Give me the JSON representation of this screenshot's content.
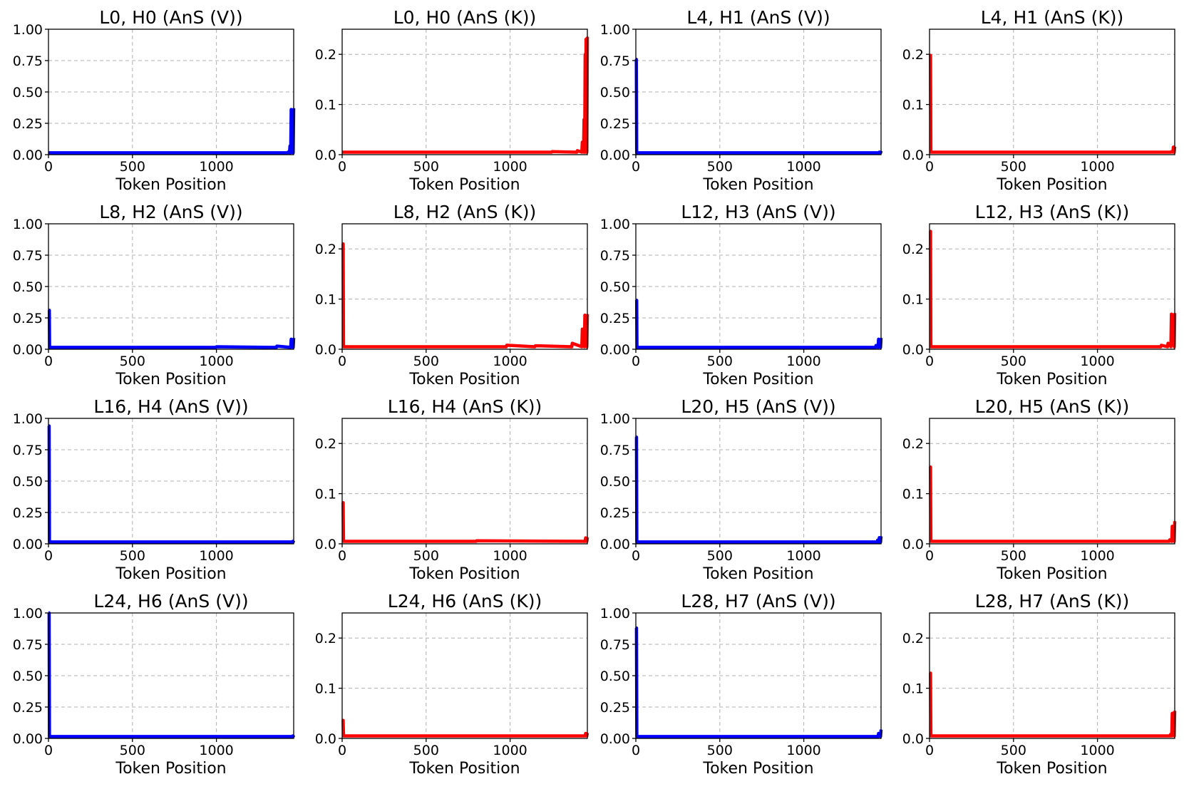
{
  "figure": {
    "xlabel": "Token Position",
    "colors": {
      "V": "#0000ff",
      "K": "#ff0000"
    }
  },
  "chart_data": [
    {
      "type": "line",
      "title": "L0, H0 (AnS (V))",
      "kind": "V",
      "xlabel": "Token Position",
      "xlim": [
        0,
        1460
      ],
      "ylim": [
        0,
        1
      ],
      "xticks": [
        0,
        500,
        1000
      ],
      "yticks": [
        "0.00",
        "0.25",
        "0.50",
        "0.75",
        "1.00"
      ],
      "baseline": 0.015,
      "spikes": [
        [
          1425,
          0.02
        ],
        [
          1438,
          0.07
        ],
        [
          1445,
          0.36
        ],
        [
          1460,
          0.37
        ]
      ]
    },
    {
      "type": "line",
      "title": "L0, H0 (AnS (K))",
      "kind": "K",
      "xlabel": "Token Position",
      "xlim": [
        0,
        1460
      ],
      "ylim": [
        0,
        0.25
      ],
      "xticks": [
        0,
        500,
        1000
      ],
      "yticks": [
        "0.0",
        "0.1",
        "0.2"
      ],
      "baseline": 0.005,
      "spikes": [
        [
          1250,
          0.006
        ],
        [
          1400,
          0.008
        ],
        [
          1430,
          0.025
        ],
        [
          1440,
          0.07
        ],
        [
          1447,
          0.2
        ],
        [
          1452,
          0.23
        ],
        [
          1460,
          0.235
        ]
      ]
    },
    {
      "type": "line",
      "title": "L4, H1 (AnS (V))",
      "kind": "V",
      "xlabel": "Token Position",
      "xlim": [
        0,
        1460
      ],
      "ylim": [
        0,
        1
      ],
      "xticks": [
        0,
        500,
        1000
      ],
      "yticks": [
        "0.00",
        "0.25",
        "0.50",
        "0.75",
        "1.00"
      ],
      "baseline": 0.015,
      "spikes": [
        [
          0,
          0.76
        ],
        [
          3,
          0.76
        ],
        [
          1450,
          0.02
        ],
        [
          1460,
          0.03
        ]
      ]
    },
    {
      "type": "line",
      "title": "L4, H1 (AnS (K))",
      "kind": "K",
      "xlabel": "Token Position",
      "xlim": [
        0,
        1460
      ],
      "ylim": [
        0,
        0.25
      ],
      "xticks": [
        0,
        500,
        1000
      ],
      "yticks": [
        "0.0",
        "0.1",
        "0.2"
      ],
      "baseline": 0.005,
      "spikes": [
        [
          0,
          0.198
        ],
        [
          6,
          0.198
        ],
        [
          1440,
          0.006
        ],
        [
          1452,
          0.015
        ],
        [
          1460,
          0.016
        ]
      ]
    },
    {
      "type": "line",
      "title": "L8, H2 (AnS (V))",
      "kind": "V",
      "xlabel": "Token Position",
      "xlim": [
        0,
        1460
      ],
      "ylim": [
        0,
        1
      ],
      "xticks": [
        0,
        500,
        1000
      ],
      "yticks": [
        "0.00",
        "0.25",
        "0.50",
        "0.75",
        "1.00"
      ],
      "baseline": 0.015,
      "spikes": [
        [
          0,
          0.31
        ],
        [
          5,
          0.31
        ],
        [
          1000,
          0.02
        ],
        [
          1360,
          0.025
        ],
        [
          1445,
          0.08
        ],
        [
          1460,
          0.09
        ]
      ]
    },
    {
      "type": "line",
      "title": "L8, H2 (AnS (K))",
      "kind": "K",
      "xlabel": "Token Position",
      "xlim": [
        0,
        1460
      ],
      "ylim": [
        0,
        0.25
      ],
      "xticks": [
        0,
        500,
        1000
      ],
      "yticks": [
        "0.0",
        "0.1",
        "0.2"
      ],
      "baseline": 0.005,
      "spikes": [
        [
          0,
          0.21
        ],
        [
          6,
          0.21
        ],
        [
          980,
          0.008
        ],
        [
          1150,
          0.007
        ],
        [
          1370,
          0.012
        ],
        [
          1430,
          0.04
        ],
        [
          1445,
          0.068
        ],
        [
          1460,
          0.07
        ]
      ]
    },
    {
      "type": "line",
      "title": "L12, H3 (AnS (V))",
      "kind": "V",
      "xlabel": "Token Position",
      "xlim": [
        0,
        1460
      ],
      "ylim": [
        0,
        1
      ],
      "xticks": [
        0,
        500,
        1000
      ],
      "yticks": [
        "0.00",
        "0.25",
        "0.50",
        "0.75",
        "1.00"
      ],
      "baseline": 0.015,
      "spikes": [
        [
          0,
          0.39
        ],
        [
          5,
          0.39
        ],
        [
          1430,
          0.03
        ],
        [
          1445,
          0.08
        ],
        [
          1460,
          0.09
        ]
      ]
    },
    {
      "type": "line",
      "title": "L12, H3 (AnS (K))",
      "kind": "K",
      "xlabel": "Token Position",
      "xlim": [
        0,
        1460
      ],
      "ylim": [
        0,
        0.25
      ],
      "xticks": [
        0,
        500,
        1000
      ],
      "yticks": [
        "0.0",
        "0.1",
        "0.2"
      ],
      "baseline": 0.005,
      "spikes": [
        [
          0,
          0.235
        ],
        [
          6,
          0.235
        ],
        [
          1380,
          0.008
        ],
        [
          1420,
          0.012
        ],
        [
          1440,
          0.07
        ],
        [
          1460,
          0.072
        ]
      ]
    },
    {
      "type": "line",
      "title": "L16, H4 (AnS (V))",
      "kind": "V",
      "xlabel": "Token Position",
      "xlim": [
        0,
        1460
      ],
      "ylim": [
        0,
        1
      ],
      "xticks": [
        0,
        500,
        1000
      ],
      "yticks": [
        "0.00",
        "0.25",
        "0.50",
        "0.75",
        "1.00"
      ],
      "baseline": 0.015,
      "spikes": [
        [
          0,
          0.94
        ],
        [
          4,
          0.94
        ],
        [
          1455,
          0.02
        ],
        [
          1460,
          0.025
        ]
      ]
    },
    {
      "type": "line",
      "title": "L16, H4 (AnS (K))",
      "kind": "K",
      "xlabel": "Token Position",
      "xlim": [
        0,
        1460
      ],
      "ylim": [
        0,
        0.25
      ],
      "xticks": [
        0,
        500,
        1000
      ],
      "yticks": [
        "0.0",
        "0.1",
        "0.2"
      ],
      "baseline": 0.005,
      "spikes": [
        [
          0,
          0.082
        ],
        [
          6,
          0.082
        ],
        [
          800,
          0.006
        ],
        [
          1450,
          0.012
        ],
        [
          1460,
          0.013
        ]
      ]
    },
    {
      "type": "line",
      "title": "L20, H5 (AnS (V))",
      "kind": "V",
      "xlabel": "Token Position",
      "xlim": [
        0,
        1460
      ],
      "ylim": [
        0,
        1
      ],
      "xticks": [
        0,
        500,
        1000
      ],
      "yticks": [
        "0.00",
        "0.25",
        "0.50",
        "0.75",
        "1.00"
      ],
      "baseline": 0.015,
      "spikes": [
        [
          0,
          0.85
        ],
        [
          4,
          0.85
        ],
        [
          1440,
          0.03
        ],
        [
          1450,
          0.05
        ],
        [
          1460,
          0.06
        ]
      ]
    },
    {
      "type": "line",
      "title": "L20, H5 (AnS (K))",
      "kind": "K",
      "xlabel": "Token Position",
      "xlim": [
        0,
        1460
      ],
      "ylim": [
        0,
        0.25
      ],
      "xticks": [
        0,
        500,
        1000
      ],
      "yticks": [
        "0.0",
        "0.1",
        "0.2"
      ],
      "baseline": 0.005,
      "spikes": [
        [
          0,
          0.153
        ],
        [
          6,
          0.153
        ],
        [
          1430,
          0.008
        ],
        [
          1445,
          0.035
        ],
        [
          1460,
          0.045
        ]
      ]
    },
    {
      "type": "line",
      "title": "L24, H6 (AnS (V))",
      "kind": "V",
      "xlabel": "Token Position",
      "xlim": [
        0,
        1460
      ],
      "ylim": [
        0,
        1
      ],
      "xticks": [
        0,
        500,
        1000
      ],
      "yticks": [
        "0.00",
        "0.25",
        "0.50",
        "0.75",
        "1.00"
      ],
      "baseline": 0.015,
      "spikes": [
        [
          0,
          1.0
        ],
        [
          4,
          1.0
        ],
        [
          1455,
          0.02
        ],
        [
          1460,
          0.025
        ]
      ]
    },
    {
      "type": "line",
      "title": "L24, H6 (AnS (K))",
      "kind": "K",
      "xlabel": "Token Position",
      "xlim": [
        0,
        1460
      ],
      "ylim": [
        0,
        0.25
      ],
      "xticks": [
        0,
        500,
        1000
      ],
      "yticks": [
        "0.0",
        "0.1",
        "0.2"
      ],
      "baseline": 0.005,
      "spikes": [
        [
          0,
          0.036
        ],
        [
          6,
          0.036
        ],
        [
          1450,
          0.01
        ],
        [
          1460,
          0.011
        ]
      ]
    },
    {
      "type": "line",
      "title": "L28, H7 (AnS (V))",
      "kind": "V",
      "xlabel": "Token Position",
      "xlim": [
        0,
        1460
      ],
      "ylim": [
        0,
        1
      ],
      "xticks": [
        0,
        500,
        1000
      ],
      "yticks": [
        "0.00",
        "0.25",
        "0.50",
        "0.75",
        "1.00"
      ],
      "baseline": 0.015,
      "spikes": [
        [
          0,
          0.88
        ],
        [
          4,
          0.88
        ],
        [
          1445,
          0.04
        ],
        [
          1460,
          0.07
        ]
      ]
    },
    {
      "type": "line",
      "title": "L28, H7 (AnS (K))",
      "kind": "K",
      "xlabel": "Token Position",
      "xlim": [
        0,
        1460
      ],
      "ylim": [
        0,
        0.25
      ],
      "xticks": [
        0,
        500,
        1000
      ],
      "yticks": [
        "0.0",
        "0.1",
        "0.2"
      ],
      "baseline": 0.005,
      "spikes": [
        [
          0,
          0.13
        ],
        [
          6,
          0.13
        ],
        [
          1435,
          0.008
        ],
        [
          1445,
          0.05
        ],
        [
          1460,
          0.055
        ]
      ]
    }
  ]
}
